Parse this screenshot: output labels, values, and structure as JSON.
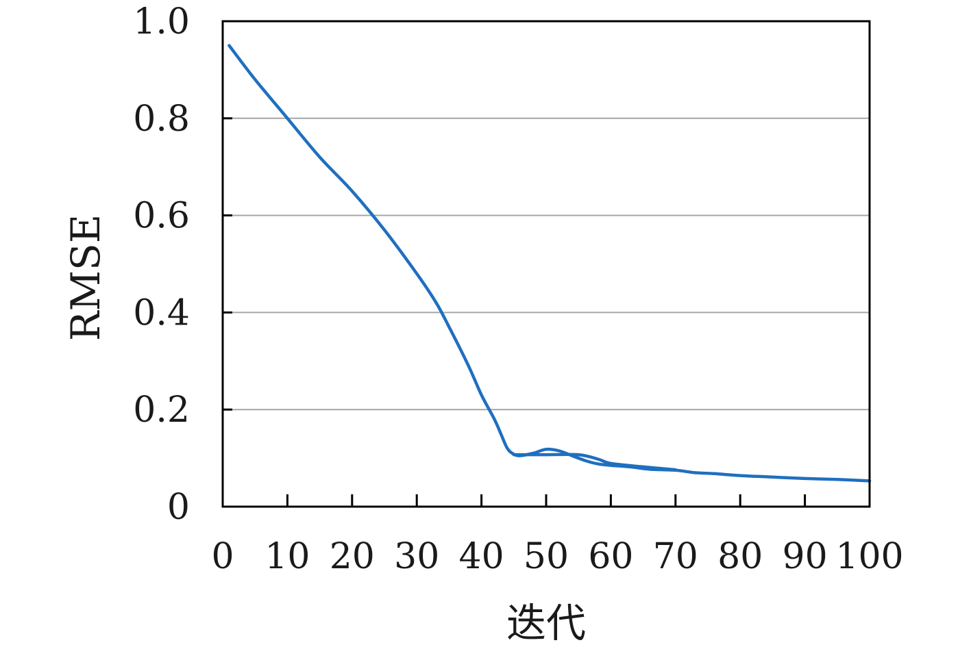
{
  "chart_data": {
    "type": "line",
    "xlabel": "迭代",
    "ylabel": "RMSE",
    "xlim": [
      0,
      100
    ],
    "ylim": [
      0,
      1.0
    ],
    "x_ticks": [
      0,
      10,
      20,
      30,
      40,
      50,
      60,
      70,
      80,
      90,
      100
    ],
    "x_tick_labels": [
      "0",
      "10",
      "20",
      "30",
      "40",
      "50",
      "60",
      "70",
      "80",
      "90",
      "100"
    ],
    "y_ticks": [
      0,
      0.2,
      0.4,
      0.6,
      0.8,
      1.0
    ],
    "y_tick_labels": [
      "0",
      "0.2",
      "0.4",
      "0.6",
      "0.8",
      "1.0"
    ],
    "grid": "horizontal",
    "legend": "none",
    "series": [
      {
        "color": "#1f6fbf",
        "x": [
          1,
          5,
          10,
          15,
          20,
          25,
          30,
          33,
          35,
          38,
          40,
          42,
          43,
          44,
          45,
          46,
          48,
          50,
          52,
          54,
          56,
          58,
          60,
          63,
          66,
          70,
          73,
          76,
          80,
          85,
          90,
          95,
          100
        ],
        "y": [
          0.95,
          0.88,
          0.8,
          0.72,
          0.65,
          0.57,
          0.48,
          0.42,
          0.37,
          0.29,
          0.23,
          0.18,
          0.15,
          0.12,
          0.108,
          0.105,
          0.11,
          0.118,
          0.115,
          0.105,
          0.095,
          0.088,
          0.085,
          0.082,
          0.077,
          0.075,
          0.07,
          0.068,
          0.064,
          0.061,
          0.058,
          0.056,
          0.053
        ]
      },
      {
        "color": "#1f6fbf",
        "x": [
          45,
          50,
          55,
          58,
          60,
          65,
          70
        ],
        "y": [
          0.107,
          0.107,
          0.107,
          0.098,
          0.089,
          0.082,
          0.076
        ]
      }
    ]
  }
}
